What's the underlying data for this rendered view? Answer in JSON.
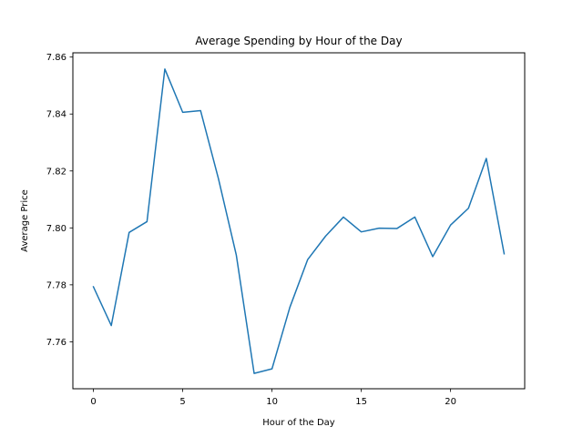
{
  "chart_data": {
    "type": "line",
    "title": "Average Spending by Hour of the Day",
    "xlabel": "Hour of the Day",
    "ylabel": "Average Price",
    "xlim": [
      -1.15,
      24.15
    ],
    "ylim": [
      7.7435,
      7.8615
    ],
    "xticks": [
      0,
      5,
      10,
      15,
      20
    ],
    "yticks": [
      7.76,
      7.78,
      7.8,
      7.82,
      7.84,
      7.86
    ],
    "ytick_labels": [
      "7.76",
      "7.78",
      "7.80",
      "7.82",
      "7.84",
      "7.86"
    ],
    "grid": false,
    "series": [
      {
        "color": "#1f77b4",
        "x": [
          0,
          1,
          2,
          3,
          4,
          5,
          6,
          7,
          8,
          9,
          10,
          11,
          12,
          13,
          14,
          15,
          16,
          17,
          18,
          19,
          20,
          21,
          22,
          23
        ],
        "values": [
          7.7793,
          7.7657,
          7.7984,
          7.8022,
          7.8558,
          7.8406,
          7.8412,
          7.8173,
          7.7905,
          7.7489,
          7.7505,
          7.7721,
          7.7889,
          7.7971,
          7.8038,
          7.7986,
          7.7999,
          7.7998,
          7.8038,
          7.7899,
          7.801,
          7.8069,
          7.8244,
          7.7909
        ]
      }
    ]
  }
}
